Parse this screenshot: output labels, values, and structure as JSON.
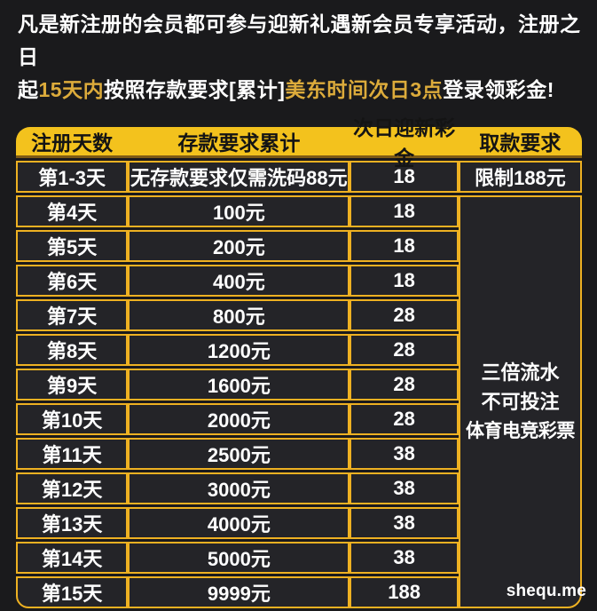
{
  "colors": {
    "page-bg": "#1a1a1c",
    "cell-bg": "#242428",
    "gold": "#eeb122",
    "header-yellow": "#f3c21d",
    "hl": "#dcab3b"
  },
  "intro": {
    "line1": "凡是新注册的会员都可参与迎新礼遇新会员专享活动，注册之日",
    "line2_seg1": "起",
    "line2_hl1": "15天内",
    "line2_seg2": "按照存款要求[累计]",
    "line2_hl2": "美东时间次日3点",
    "line2_seg3": "登录领彩金!"
  },
  "table": {
    "headers": [
      "注册天数",
      "存款要求累计",
      "次日迎新彩金",
      "取款要求"
    ],
    "rows": [
      {
        "day": "第1-3天",
        "deposit": "无存款要求仅需洗码88元",
        "bonus": "18",
        "withdraw": "限制188元"
      },
      {
        "day": "第4天",
        "deposit": "100元",
        "bonus": "18"
      },
      {
        "day": "第5天",
        "deposit": "200元",
        "bonus": "18"
      },
      {
        "day": "第6天",
        "deposit": "400元",
        "bonus": "18"
      },
      {
        "day": "第7天",
        "deposit": "800元",
        "bonus": "28"
      },
      {
        "day": "第8天",
        "deposit": "1200元",
        "bonus": "28"
      },
      {
        "day": "第9天",
        "deposit": "1600元",
        "bonus": "28"
      },
      {
        "day": "第10天",
        "deposit": "2000元",
        "bonus": "28"
      },
      {
        "day": "第11天",
        "deposit": "2500元",
        "bonus": "38"
      },
      {
        "day": "第12天",
        "deposit": "3000元",
        "bonus": "38"
      },
      {
        "day": "第13天",
        "deposit": "4000元",
        "bonus": "38"
      },
      {
        "day": "第14天",
        "deposit": "5000元",
        "bonus": "38"
      },
      {
        "day": "第15天",
        "deposit": "9999元",
        "bonus": "188"
      }
    ],
    "withdraw_note": {
      "line1": "三倍流水",
      "line2": "不可投注",
      "line3": "体育电竞彩票"
    }
  },
  "watermark": "shequ.me"
}
